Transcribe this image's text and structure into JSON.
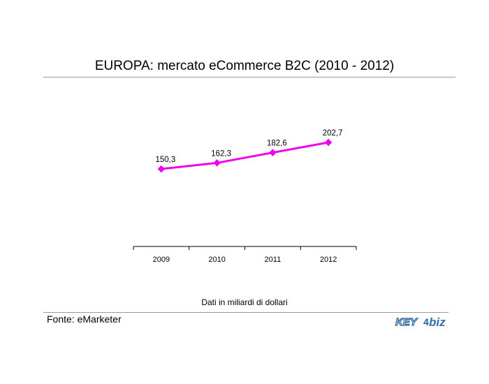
{
  "chart_data": {
    "type": "line",
    "title": "EUROPA: mercato eCommerce B2C (2010 - 2012)",
    "categories": [
      "2009",
      "2010",
      "2011",
      "2012"
    ],
    "series": [
      {
        "values": [
          150.3,
          162.3,
          182.6,
          202.7
        ],
        "labels": [
          "150,3",
          "162,3",
          "182,6",
          "202,7"
        ],
        "color": "#ee00ee"
      }
    ],
    "xlabel": "",
    "ylabel": "",
    "ylim": [
      0,
      260
    ],
    "grid": false,
    "legend": "none"
  },
  "note": "Dati in miliardi di dollari",
  "source": "Fonte: eMarketer",
  "logo": {
    "text": "KEY4biz",
    "color": "#1f5f9a"
  }
}
